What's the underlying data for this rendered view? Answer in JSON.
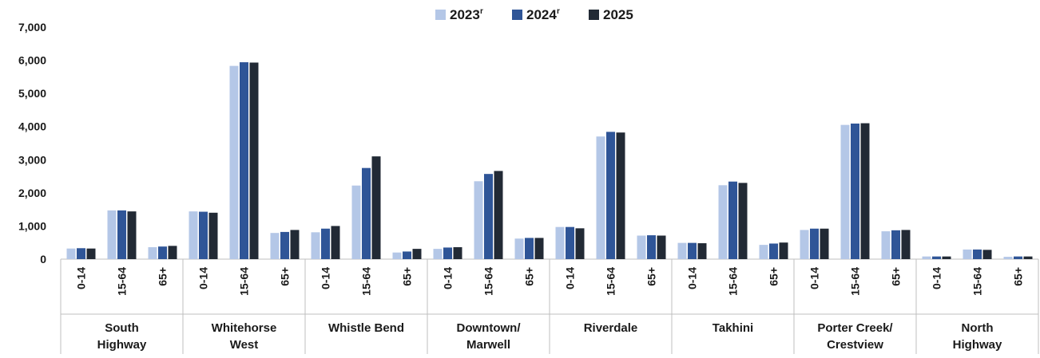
{
  "chart_data": {
    "type": "bar",
    "legend_position": "top-center",
    "grid": false,
    "ylim": [
      0,
      7000
    ],
    "y_ticks": [
      "0",
      "1,000",
      "2,000",
      "3,000",
      "4,000",
      "5,000",
      "6,000",
      "7,000"
    ],
    "groups": [
      {
        "label_lines": [
          "South",
          "Highway"
        ],
        "categories": [
          "0-14",
          "15-64",
          "65+"
        ]
      },
      {
        "label_lines": [
          "Whitehorse",
          "West"
        ],
        "categories": [
          "0-14",
          "15-64",
          "65+"
        ]
      },
      {
        "label_lines": [
          "Whistle Bend"
        ],
        "categories": [
          "0-14",
          "15-64",
          "65+"
        ]
      },
      {
        "label_lines": [
          "Downtown/",
          "Marwell"
        ],
        "categories": [
          "0-14",
          "15-64",
          "65+"
        ]
      },
      {
        "label_lines": [
          "Riverdale"
        ],
        "categories": [
          "0-14",
          "15-64",
          "65+"
        ]
      },
      {
        "label_lines": [
          "Takhini"
        ],
        "categories": [
          "0-14",
          "15-64",
          "65+"
        ]
      },
      {
        "label_lines": [
          "Porter Creek/",
          "Crestview"
        ],
        "categories": [
          "0-14",
          "15-64",
          "65+"
        ]
      },
      {
        "label_lines": [
          "North",
          "Highway"
        ],
        "categories": [
          "0-14",
          "15-64",
          "65+"
        ]
      }
    ],
    "series": [
      {
        "name": "2023",
        "superscript": "r",
        "color": "#b4c7e7",
        "values": [
          320,
          1470,
          360,
          1440,
          5830,
          790,
          810,
          2220,
          200,
          310,
          2350,
          620,
          970,
          3700,
          710,
          490,
          2230,
          430,
          880,
          4050,
          840,
          80,
          290,
          70
        ]
      },
      {
        "name": "2024",
        "superscript": "r",
        "color": "#2f5597",
        "values": [
          330,
          1470,
          380,
          1430,
          5940,
          820,
          920,
          2750,
          230,
          350,
          2570,
          640,
          970,
          3840,
          720,
          490,
          2340,
          470,
          920,
          4090,
          870,
          80,
          290,
          80
        ]
      },
      {
        "name": "2025",
        "superscript": "",
        "color": "#222a35",
        "values": [
          320,
          1440,
          400,
          1400,
          5930,
          880,
          1000,
          3100,
          310,
          360,
          2660,
          640,
          930,
          3820,
          710,
          480,
          2300,
          500,
          920,
          4100,
          880,
          80,
          280,
          80
        ]
      }
    ]
  }
}
